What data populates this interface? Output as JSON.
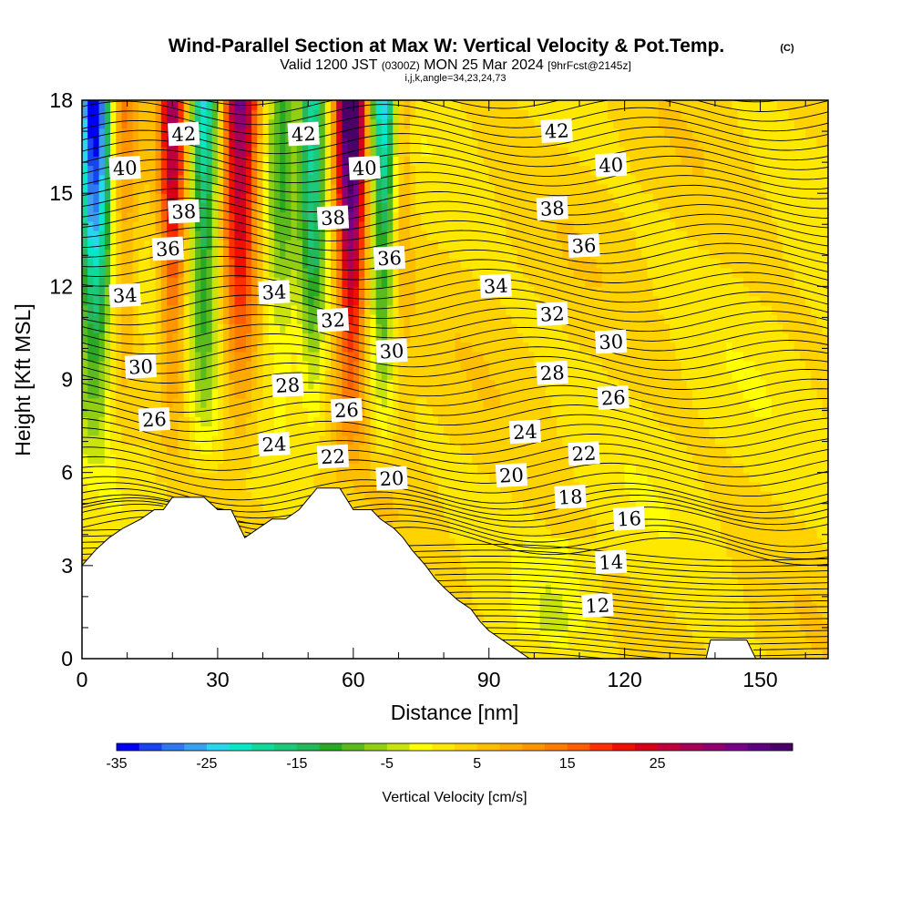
{
  "title": "Wind-Parallel Section at Max W: Vertical Velocity & Pot.Temp.",
  "copyright": "(C)",
  "valid_line": {
    "prefix": "Valid 1200 JST",
    "utc": "(0300Z)",
    "date": "MON 25 Mar 2024",
    "fcst": "[9hrFcst@2145z]"
  },
  "ijk_line": "i,j,k,angle=34,23,24,73",
  "chart_data": {
    "type": "heatmap",
    "title": "Wind-Parallel Section at Max W: Vertical Velocity & Pot.Temp.",
    "xlabel": "Distance [nm]",
    "ylabel": "Height [Kft MSL]",
    "xlim": [
      0,
      165
    ],
    "ylim": [
      0,
      18
    ],
    "x_ticks": [
      "0",
      "30",
      "60",
      "90",
      "120",
      "150"
    ],
    "y_ticks": [
      "0",
      "3",
      "6",
      "9",
      "12",
      "15",
      "18"
    ],
    "x_tick_values": [
      0,
      30,
      60,
      90,
      120,
      150
    ],
    "y_tick_values": [
      0,
      3,
      6,
      9,
      12,
      15,
      18
    ],
    "colorbar": {
      "label": "Vertical Velocity [cm/s]",
      "tick_labels": [
        "-35",
        "-25",
        "-15",
        "-5",
        "5",
        "15",
        "25"
      ],
      "tick_values": [
        -35,
        -25,
        -15,
        -5,
        5,
        15,
        25
      ],
      "min": -35,
      "step": 2.5,
      "colors": [
        "#0000f0",
        "#1843f0",
        "#2f78f0",
        "#3aa0f0",
        "#2ad6ec",
        "#08e8c8",
        "#10d99a",
        "#1ec87a",
        "#24b85a",
        "#2aaa24",
        "#5cbb1c",
        "#90cf14",
        "#c8e40c",
        "#ffff00",
        "#ffe800",
        "#ffd200",
        "#ffbe00",
        "#ffaa00",
        "#ff9600",
        "#ff7c00",
        "#ff5e00",
        "#ff3000",
        "#f01000",
        "#d80018",
        "#c0003c",
        "#a80058",
        "#900070",
        "#780088",
        "#5f0080",
        "#4a0068"
      ]
    },
    "contour_field": "Potential Temperature",
    "contour_labels": [
      {
        "value": "42",
        "x": 22.5,
        "y": 16.9
      },
      {
        "value": "42",
        "x": 49,
        "y": 16.9
      },
      {
        "value": "42",
        "x": 105,
        "y": 17.0
      },
      {
        "value": "40",
        "x": 9.5,
        "y": 15.8
      },
      {
        "value": "40",
        "x": 62.5,
        "y": 15.8
      },
      {
        "value": "40",
        "x": 117,
        "y": 15.9
      },
      {
        "value": "38",
        "x": 22.5,
        "y": 14.4
      },
      {
        "value": "38",
        "x": 55.5,
        "y": 14.2
      },
      {
        "value": "38",
        "x": 104,
        "y": 14.5
      },
      {
        "value": "36",
        "x": 19,
        "y": 13.2
      },
      {
        "value": "36",
        "x": 68,
        "y": 12.9
      },
      {
        "value": "36",
        "x": 111,
        "y": 13.3
      },
      {
        "value": "34",
        "x": 9.5,
        "y": 11.7
      },
      {
        "value": "34",
        "x": 42.5,
        "y": 11.8
      },
      {
        "value": "34",
        "x": 91.5,
        "y": 12.0
      },
      {
        "value": "32",
        "x": 55.5,
        "y": 10.9
      },
      {
        "value": "32",
        "x": 104,
        "y": 11.1
      },
      {
        "value": "30",
        "x": 13,
        "y": 9.4
      },
      {
        "value": "30",
        "x": 68.5,
        "y": 9.9
      },
      {
        "value": "30",
        "x": 117,
        "y": 10.2
      },
      {
        "value": "28",
        "x": 45.5,
        "y": 8.8
      },
      {
        "value": "28",
        "x": 104,
        "y": 9.2
      },
      {
        "value": "26",
        "x": 16,
        "y": 7.7
      },
      {
        "value": "26",
        "x": 58.5,
        "y": 8.0
      },
      {
        "value": "26",
        "x": 117.5,
        "y": 8.4
      },
      {
        "value": "24",
        "x": 42.5,
        "y": 6.9
      },
      {
        "value": "24",
        "x": 98,
        "y": 7.3
      },
      {
        "value": "22",
        "x": 55.5,
        "y": 6.5
      },
      {
        "value": "22",
        "x": 111,
        "y": 6.6
      },
      {
        "value": "20",
        "x": 68.5,
        "y": 5.8
      },
      {
        "value": "20",
        "x": 95,
        "y": 5.9
      },
      {
        "value": "18",
        "x": 108,
        "y": 5.2
      },
      {
        "value": "16",
        "x": 121,
        "y": 4.5
      },
      {
        "value": "14",
        "x": 117,
        "y": 3.1
      },
      {
        "value": "12",
        "x": 114,
        "y": 1.7
      }
    ],
    "terrain": [
      [
        0,
        3.0
      ],
      [
        3,
        3.5
      ],
      [
        6,
        3.9
      ],
      [
        9,
        4.2
      ],
      [
        13,
        4.5
      ],
      [
        16,
        4.8
      ],
      [
        18,
        4.8
      ],
      [
        20,
        5.2
      ],
      [
        24,
        5.2
      ],
      [
        27,
        5.2
      ],
      [
        30,
        4.8
      ],
      [
        33,
        4.8
      ],
      [
        36,
        3.9
      ],
      [
        39,
        4.2
      ],
      [
        42,
        4.5
      ],
      [
        45,
        4.5
      ],
      [
        48,
        4.8
      ],
      [
        52,
        5.5
      ],
      [
        57,
        5.5
      ],
      [
        60,
        4.8
      ],
      [
        64,
        4.8
      ],
      [
        66,
        4.5
      ],
      [
        69,
        4.2
      ],
      [
        71,
        3.9
      ],
      [
        73,
        3.5
      ],
      [
        76,
        3.0
      ],
      [
        78,
        2.6
      ],
      [
        80,
        2.3
      ],
      [
        83,
        1.9
      ],
      [
        86,
        1.6
      ],
      [
        88,
        1.2
      ],
      [
        90,
        0.9
      ],
      [
        93,
        0.6
      ],
      [
        96,
        0.3
      ],
      [
        99,
        0.0
      ],
      [
        138,
        0.0
      ],
      [
        139,
        0.6
      ],
      [
        147,
        0.6
      ],
      [
        149,
        0.0
      ],
      [
        165,
        0.0
      ]
    ]
  }
}
